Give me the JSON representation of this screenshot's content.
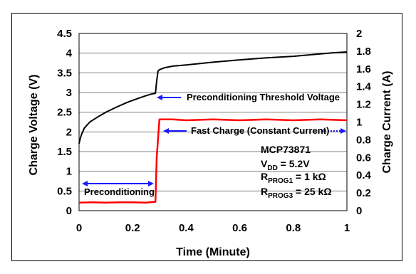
{
  "chart_data": {
    "type": "line",
    "xlabel": "Time (Minute)",
    "ylabel_left": "Charge Voltage (V)",
    "ylabel_right": "Charge Current (A)",
    "xlim": [
      0,
      1
    ],
    "ylim_left": [
      0,
      4.5
    ],
    "ylim_right": [
      0,
      2
    ],
    "x_ticks": [
      "0",
      "0.2",
      "0.4",
      "0.6",
      "0.8",
      "1"
    ],
    "y_left_ticks": [
      "0",
      "0.5",
      "1",
      "1.5",
      "2",
      "2.5",
      "3",
      "3.5",
      "4",
      "4.5"
    ],
    "y_right_ticks": [
      "0",
      "0.2",
      "0.4",
      "0.6",
      "0.8",
      "1",
      "1.2",
      "1.4",
      "1.6",
      "1.8",
      "2"
    ],
    "grid": "horizontal",
    "series": [
      {
        "axis": "left",
        "color": "#000000",
        "x": [
          0,
          0.005,
          0.01,
          0.02,
          0.04,
          0.07,
          0.1,
          0.14,
          0.18,
          0.22,
          0.25,
          0.27,
          0.285,
          0.29,
          0.295,
          0.3,
          0.32,
          0.35,
          0.4,
          0.5,
          0.6,
          0.7,
          0.8,
          0.9,
          0.95,
          1.0
        ],
        "y": [
          1.7,
          1.85,
          1.95,
          2.1,
          2.25,
          2.38,
          2.5,
          2.63,
          2.75,
          2.85,
          2.92,
          2.96,
          2.98,
          3.3,
          3.55,
          3.58,
          3.63,
          3.67,
          3.7,
          3.77,
          3.83,
          3.88,
          3.92,
          3.98,
          4.01,
          4.03
        ]
      },
      {
        "axis": "right",
        "color": "#ff0000",
        "x": [
          0,
          0.05,
          0.1,
          0.15,
          0.2,
          0.25,
          0.28,
          0.285,
          0.29,
          0.3,
          0.35,
          0.4,
          0.5,
          0.6,
          0.7,
          0.8,
          0.9,
          1.0
        ],
        "y": [
          0.09,
          0.095,
          0.09,
          0.095,
          0.095,
          0.09,
          0.1,
          0.1,
          0.6,
          1.03,
          1.03,
          1.02,
          1.03,
          1.02,
          1.03,
          1.02,
          1.03,
          1.02
        ]
      }
    ],
    "annotations": {
      "threshold": "Preconditioning Threshold Voltage",
      "fast_charge": "Fast Charge (Constant Current)",
      "precond": "Preconditioning"
    },
    "info": {
      "part": "MCP73871",
      "vdd_main": "V",
      "vdd_sub": "DD",
      "vdd_val": " = 5.2V",
      "rprog1_main": "R",
      "rprog1_sub": "PROG1",
      "rprog1_val": " = 1 kΩ",
      "rprog3_main": "R",
      "rprog3_sub": "PROG3",
      "rprog3_val": " = 25 kΩ"
    }
  }
}
